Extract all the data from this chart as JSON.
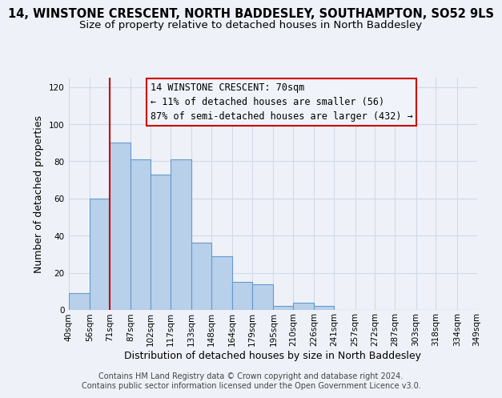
{
  "title_line1": "14, WINSTONE CRESCENT, NORTH BADDESLEY, SOUTHAMPTON, SO52 9LS",
  "title_line2": "Size of property relative to detached houses in North Baddesley",
  "xlabel": "Distribution of detached houses by size in North Baddesley",
  "ylabel": "Number of detached properties",
  "bin_edges": [
    40,
    56,
    71,
    87,
    102,
    117,
    133,
    148,
    164,
    179,
    195,
    210,
    226,
    241,
    257,
    272,
    287,
    303,
    318,
    334,
    349
  ],
  "bar_heights": [
    9,
    60,
    90,
    81,
    73,
    81,
    36,
    29,
    15,
    14,
    2,
    4,
    2,
    0,
    0,
    0,
    0,
    0,
    0,
    0
  ],
  "bar_color": "#b8d0ea",
  "bar_edgecolor": "#6699cc",
  "vline_x": 71,
  "vline_color": "#cc0000",
  "annotation_lines": [
    "14 WINSTONE CRESCENT: 70sqm",
    "← 11% of detached houses are smaller (56)",
    "87% of semi-detached houses are larger (432) →"
  ],
  "annotation_box_edgecolor": "#cc0000",
  "annotation_box_facecolor": "#f0f4fa",
  "ylim": [
    0,
    125
  ],
  "yticks": [
    0,
    20,
    40,
    60,
    80,
    100,
    120
  ],
  "xtick_labels": [
    "40sqm",
    "56sqm",
    "71sqm",
    "87sqm",
    "102sqm",
    "117sqm",
    "133sqm",
    "148sqm",
    "164sqm",
    "179sqm",
    "195sqm",
    "210sqm",
    "226sqm",
    "241sqm",
    "257sqm",
    "272sqm",
    "287sqm",
    "303sqm",
    "318sqm",
    "334sqm",
    "349sqm"
  ],
  "footnote1": "Contains HM Land Registry data © Crown copyright and database right 2024.",
  "footnote2": "Contains public sector information licensed under the Open Government Licence v3.0.",
  "background_color": "#eef2f8",
  "grid_color": "#d0d8e8",
  "title_fontsize": 10.5,
  "subtitle_fontsize": 9.5,
  "axis_label_fontsize": 9,
  "tick_fontsize": 7.5,
  "annotation_fontsize": 8.5,
  "footnote_fontsize": 7
}
